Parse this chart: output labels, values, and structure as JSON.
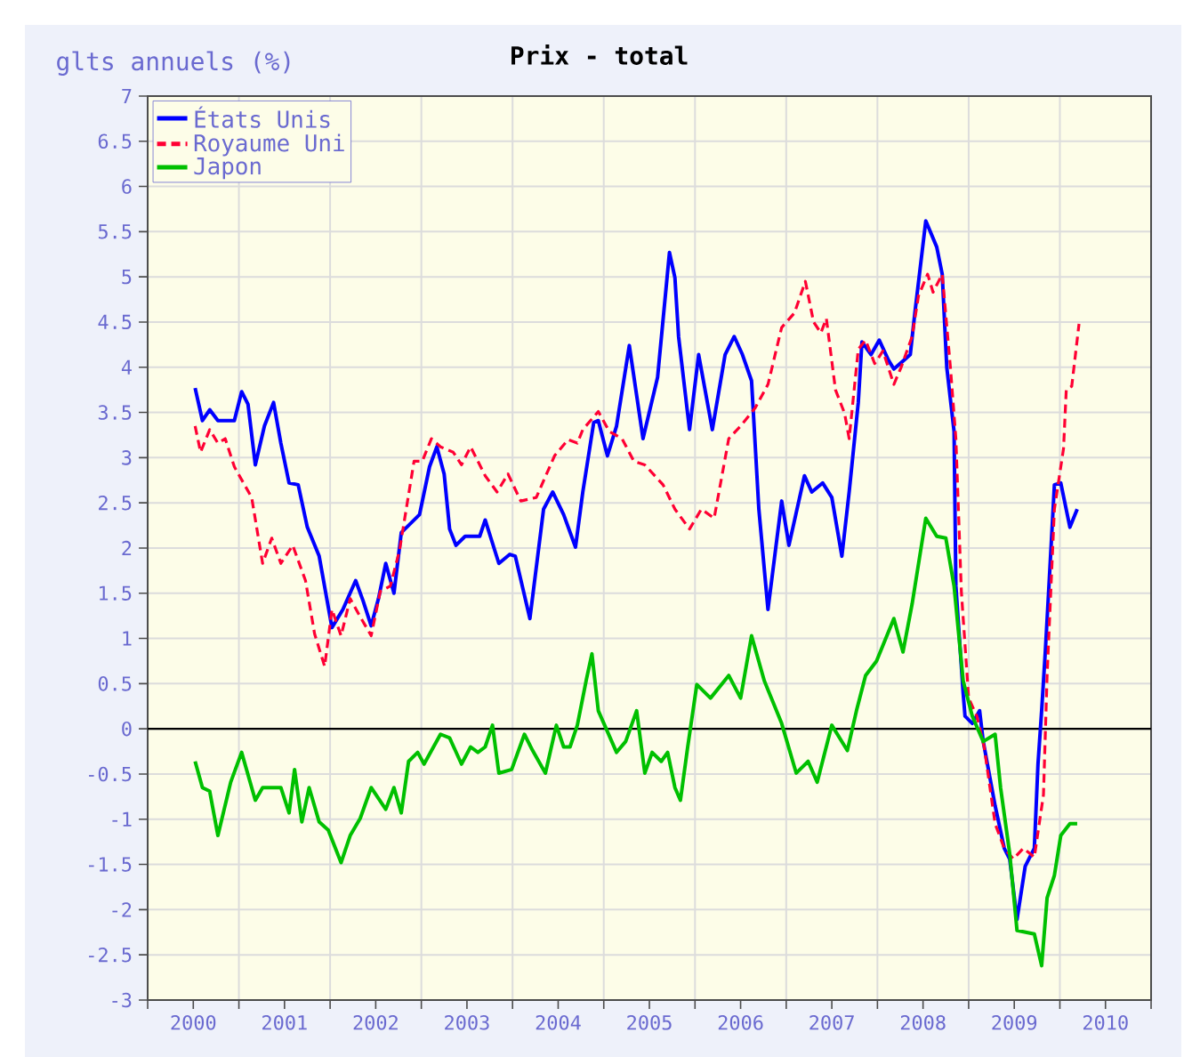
{
  "chart_data": {
    "type": "line",
    "title": "Prix - total",
    "ylabel": "glts annuels (%)",
    "xlim": [
      2000,
      2011
    ],
    "xticks": [
      {
        "value": 2000,
        "label": null
      },
      {
        "value": 2000.5,
        "label": "2000"
      },
      {
        "value": 2001,
        "label": null
      },
      {
        "value": 2001.5,
        "label": "2001"
      },
      {
        "value": 2002,
        "label": null
      },
      {
        "value": 2002.5,
        "label": "2002"
      },
      {
        "value": 2003,
        "label": null
      },
      {
        "value": 2003.5,
        "label": "2003"
      },
      {
        "value": 2004,
        "label": null
      },
      {
        "value": 2004.5,
        "label": "2004"
      },
      {
        "value": 2005,
        "label": null
      },
      {
        "value": 2005.5,
        "label": "2005"
      },
      {
        "value": 2006,
        "label": null
      },
      {
        "value": 2006.5,
        "label": "2006"
      },
      {
        "value": 2007,
        "label": null
      },
      {
        "value": 2007.5,
        "label": "2007"
      },
      {
        "value": 2008,
        "label": null
      },
      {
        "value": 2008.5,
        "label": "2008"
      },
      {
        "value": 2009,
        "label": null
      },
      {
        "value": 2009.5,
        "label": "2009"
      },
      {
        "value": 2010,
        "label": null
      },
      {
        "value": 2010.5,
        "label": "2010"
      },
      {
        "value": 2011,
        "label": null
      }
    ],
    "ylim": [
      -3,
      7
    ],
    "yticks": [
      -3,
      -2.5,
      -2,
      -1.5,
      -1,
      -0.5,
      0,
      0.5,
      1,
      1.5,
      2,
      2.5,
      3,
      3.5,
      4,
      4.5,
      5,
      5.5,
      6,
      6.5,
      7
    ],
    "grid": true,
    "legend": "top left",
    "marker": "none",
    "ref_lines": [
      {
        "axis": "y",
        "value": 0,
        "color": "#000000"
      }
    ],
    "series": [
      {
        "name": "États Unis",
        "color": "#0000ff",
        "line_style": "solid",
        "x": [
          2000.52,
          2000.6,
          2000.68,
          2000.77,
          2000.95,
          2001.03,
          2001.1,
          2001.18,
          2001.28,
          2001.38,
          2001.46,
          2001.55,
          2001.65,
          2001.75,
          2001.88,
          2002.02,
          2002.14,
          2002.28,
          2002.36,
          2002.45,
          2002.53,
          2002.61,
          2002.7,
          2002.78,
          2002.98,
          2003.09,
          2003.17,
          2003.25,
          2003.31,
          2003.38,
          2003.48,
          2003.64,
          2003.7,
          2003.85,
          2003.97,
          2004.03,
          2004.19,
          2004.34,
          2004.44,
          2004.56,
          2004.69,
          2004.77,
          2004.89,
          2004.94,
          2005.04,
          2005.14,
          2005.28,
          2005.43,
          2005.59,
          2005.72,
          2005.78,
          2005.82,
          2005.94,
          2006.04,
          2006.19,
          2006.33,
          2006.43,
          2006.52,
          2006.62,
          2006.7,
          2006.8,
          2006.95,
          2007.03,
          2007.2,
          2007.28,
          2007.4,
          2007.5,
          2007.61,
          2007.69,
          2007.79,
          2007.83,
          2007.93,
          2008.02,
          2008.12,
          2008.18,
          2008.36,
          2008.41,
          2008.53,
          2008.65,
          2008.71,
          2008.76,
          2008.84,
          2008.86,
          2008.94,
          2008.96,
          2009.04,
          2009.12,
          2009.16,
          2009.29,
          2009.39,
          2009.45,
          2009.53,
          2009.62,
          2009.72,
          2009.76,
          2009.8,
          2009.84,
          2009.88,
          2009.94,
          2010.01,
          2010.11,
          2010.19
        ],
        "values": [
          3.77,
          3.41,
          3.53,
          3.41,
          3.41,
          3.73,
          3.59,
          2.92,
          3.35,
          3.61,
          3.16,
          2.72,
          2.7,
          2.23,
          1.91,
          1.12,
          1.32,
          1.64,
          1.42,
          1.14,
          1.44,
          1.83,
          1.5,
          2.17,
          2.37,
          2.9,
          3.12,
          2.82,
          2.21,
          2.03,
          2.13,
          2.13,
          2.31,
          1.83,
          1.93,
          1.91,
          1.22,
          2.43,
          2.62,
          2.37,
          2.01,
          2.62,
          3.39,
          3.41,
          3.02,
          3.35,
          4.24,
          3.21,
          3.89,
          5.27,
          4.99,
          4.34,
          3.31,
          4.14,
          3.31,
          4.14,
          4.34,
          4.14,
          3.85,
          2.43,
          1.32,
          2.52,
          2.03,
          2.8,
          2.62,
          2.72,
          2.56,
          1.91,
          2.62,
          3.61,
          4.28,
          4.14,
          4.3,
          4.08,
          3.98,
          4.14,
          4.6,
          5.62,
          5.33,
          5.03,
          4.0,
          3.29,
          1.58,
          0.39,
          0.14,
          0.06,
          0.2,
          -0.14,
          -0.85,
          -1.32,
          -1.44,
          -2.11,
          -1.52,
          -1.32,
          -0.39,
          0.2,
          0.85,
          1.58,
          2.7,
          2.72,
          2.23,
          2.43
        ]
      },
      {
        "name": "Royaume Uni",
        "color": "#ff0033",
        "line_style": "dashed",
        "x": [
          2000.52,
          2000.58,
          2000.68,
          2000.77,
          2000.85,
          2000.95,
          2001.05,
          2001.14,
          2001.26,
          2001.36,
          2001.46,
          2001.59,
          2001.73,
          2001.83,
          2001.94,
          2002.02,
          2002.12,
          2002.22,
          2002.33,
          2002.45,
          2002.55,
          2002.66,
          2002.76,
          2002.92,
          2003.01,
          2003.11,
          2003.21,
          2003.35,
          2003.44,
          2003.54,
          2003.7,
          2003.83,
          2003.95,
          2004.09,
          2004.26,
          2004.46,
          2004.61,
          2004.71,
          2004.77,
          2004.94,
          2005.06,
          2005.2,
          2005.33,
          2005.45,
          2005.65,
          2005.78,
          2005.94,
          2006.07,
          2006.21,
          2006.37,
          2006.5,
          2006.66,
          2006.8,
          2006.95,
          2007.09,
          2007.21,
          2007.3,
          2007.38,
          2007.44,
          2007.54,
          2007.64,
          2007.69,
          2007.79,
          2007.87,
          2007.97,
          2008.06,
          2008.18,
          2008.26,
          2008.38,
          2008.45,
          2008.55,
          2008.61,
          2008.71,
          2008.8,
          2008.86,
          2008.92,
          2009.0,
          2009.09,
          2009.17,
          2009.29,
          2009.39,
          2009.49,
          2009.6,
          2009.72,
          2009.82,
          2009.86,
          2009.94,
          2010.04,
          2010.07,
          2010.13,
          2010.21
        ],
        "values": [
          3.35,
          3.06,
          3.31,
          3.16,
          3.21,
          2.9,
          2.72,
          2.56,
          1.83,
          2.11,
          1.83,
          2.03,
          1.64,
          1.05,
          0.69,
          1.32,
          1.03,
          1.44,
          1.24,
          1.03,
          1.52,
          1.58,
          1.97,
          2.96,
          2.96,
          3.21,
          3.12,
          3.06,
          2.92,
          3.12,
          2.8,
          2.62,
          2.82,
          2.52,
          2.56,
          3.02,
          3.2,
          3.16,
          3.31,
          3.51,
          3.29,
          3.21,
          2.96,
          2.92,
          2.7,
          2.43,
          2.21,
          2.43,
          2.33,
          3.21,
          3.35,
          3.55,
          3.81,
          4.44,
          4.6,
          4.95,
          4.5,
          4.38,
          4.54,
          3.75,
          3.49,
          3.21,
          4.2,
          4.3,
          4.04,
          4.18,
          3.81,
          4.0,
          4.34,
          4.79,
          5.03,
          4.83,
          5.03,
          4.0,
          3.21,
          1.52,
          0.34,
          0.14,
          -0.2,
          -1.05,
          -1.32,
          -1.44,
          -1.32,
          -1.42,
          -0.73,
          0.59,
          2.43,
          3.1,
          3.75,
          3.79,
          4.48
        ]
      },
      {
        "name": "Japon",
        "color": "#00c000",
        "line_style": "solid",
        "x": [
          2000.52,
          2000.6,
          2000.68,
          2000.77,
          2000.91,
          2001.03,
          2001.18,
          2001.26,
          2001.46,
          2001.55,
          2001.61,
          2001.69,
          2001.77,
          2001.88,
          2001.98,
          2002.12,
          2002.22,
          2002.33,
          2002.45,
          2002.61,
          2002.7,
          2002.78,
          2002.86,
          2002.96,
          2003.03,
          2003.21,
          2003.31,
          2003.44,
          2003.54,
          2003.62,
          2003.7,
          2003.78,
          2003.85,
          2003.99,
          2004.13,
          2004.22,
          2004.36,
          2004.48,
          2004.56,
          2004.63,
          2004.71,
          2004.81,
          2004.87,
          2004.94,
          2005.14,
          2005.24,
          2005.36,
          2005.45,
          2005.53,
          2005.63,
          2005.7,
          2005.78,
          2005.84,
          2005.92,
          2006.02,
          2006.17,
          2006.37,
          2006.5,
          2006.62,
          2006.76,
          2006.95,
          2007.11,
          2007.24,
          2007.34,
          2007.5,
          2007.67,
          2007.77,
          2007.87,
          2007.99,
          2008.18,
          2008.28,
          2008.38,
          2008.53,
          2008.65,
          2008.75,
          2008.84,
          2008.94,
          2009.04,
          2009.16,
          2009.29,
          2009.35,
          2009.45,
          2009.53,
          2009.72,
          2009.8,
          2009.86,
          2009.94,
          2010.01,
          2010.11,
          2010.19
        ],
        "values": [
          -0.36,
          -0.65,
          -0.69,
          -1.18,
          -0.59,
          -0.26,
          -0.79,
          -0.65,
          -0.65,
          -0.93,
          -0.45,
          -1.03,
          -0.65,
          -1.03,
          -1.12,
          -1.48,
          -1.18,
          -0.99,
          -0.65,
          -0.89,
          -0.65,
          -0.93,
          -0.36,
          -0.26,
          -0.39,
          -0.06,
          -0.1,
          -0.39,
          -0.2,
          -0.26,
          -0.2,
          0.04,
          -0.49,
          -0.45,
          -0.06,
          -0.24,
          -0.49,
          0.04,
          -0.2,
          -0.2,
          0.04,
          0.55,
          0.83,
          0.2,
          -0.26,
          -0.14,
          0.2,
          -0.49,
          -0.26,
          -0.36,
          -0.26,
          -0.65,
          -0.79,
          -0.2,
          0.49,
          0.34,
          0.59,
          0.34,
          1.03,
          0.53,
          0.06,
          -0.49,
          -0.36,
          -0.59,
          0.04,
          -0.24,
          0.2,
          0.59,
          0.75,
          1.22,
          0.85,
          1.38,
          2.33,
          2.13,
          2.11,
          1.58,
          0.53,
          0.14,
          -0.14,
          -0.06,
          -0.65,
          -1.38,
          -2.23,
          -2.27,
          -2.62,
          -1.87,
          -1.62,
          -1.18,
          -1.05,
          -1.05
        ]
      }
    ]
  }
}
